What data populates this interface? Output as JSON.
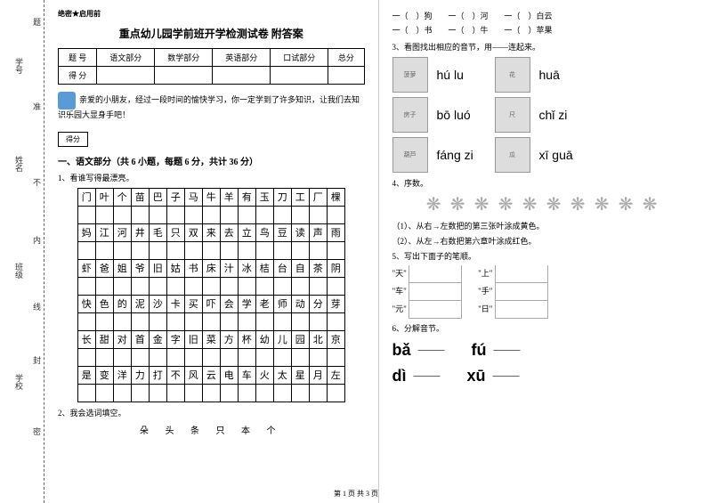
{
  "margin": {
    "labels": [
      "学号",
      "姓名",
      "班级",
      "学校"
    ],
    "marks": [
      "题",
      "准",
      "不",
      "内",
      "线",
      "封",
      "密"
    ]
  },
  "confidential": "绝密★启用前",
  "title": "重点幼儿园学前班开学检测试卷 附答案",
  "scoreTable": {
    "headers": [
      "题 号",
      "语文部分",
      "数学部分",
      "英语部分",
      "口试部分",
      "总分"
    ],
    "row2": "得 分"
  },
  "intro": "亲爱的小朋友，经过一段时间的愉快学习，你一定学到了许多知识，让我们去知识乐园大显身手吧！",
  "scoreBox": "得分",
  "section1": "一、语文部分（共 6 小题，每题 6 分，共计 36 分）",
  "q1": "1、看谁写得最漂亮。",
  "charGrid": [
    [
      "门",
      "叶",
      "个",
      "苗",
      "巴",
      "子",
      "马",
      "牛",
      "羊",
      "有",
      "玉",
      "刀",
      "工",
      "厂",
      "棵"
    ],
    [
      "妈",
      "江",
      "河",
      "井",
      "毛",
      "只",
      "双",
      "来",
      "去",
      "立",
      "鸟",
      "豆",
      "读",
      "声",
      "雨"
    ],
    [
      "虾",
      "爸",
      "姐",
      "爷",
      "旧",
      "姑",
      "书",
      "床",
      "汁",
      "冰",
      "桔",
      "台",
      "自",
      "茶",
      "阴"
    ],
    [
      "快",
      "色",
      "的",
      "泥",
      "沙",
      "卡",
      "买",
      "吓",
      "会",
      "学",
      "老",
      "师",
      "动",
      "分",
      "芽"
    ],
    [
      "长",
      "甜",
      "对",
      "首",
      "金",
      "字",
      "旧",
      "菜",
      "方",
      "杯",
      "幼",
      "儿",
      "园",
      "北",
      "京"
    ],
    [
      "是",
      "变",
      "洋",
      "力",
      "打",
      "不",
      "风",
      "云",
      "电",
      "车",
      "火",
      "太",
      "星",
      "月",
      "左"
    ]
  ],
  "q2": "2、我会选词填空。",
  "wordBank": "朵 头 条 只 本 个",
  "rightCol": {
    "fill1": "一（　）狗　　一（　）河　　一（　）白云",
    "fill2": "一（　）书　　一（　）牛　　一（　）苹果",
    "q3": "3、看图找出相应的音节，用——连起来。",
    "pinyinItems": [
      {
        "img1": "菠萝",
        "pinyin1": "hú lu",
        "img2": "花",
        "pinyin2": "huā"
      },
      {
        "img1": "房子",
        "pinyin1": "bō luó",
        "img2": "尺",
        "pinyin2": "chǐ zi"
      },
      {
        "img1": "葫芦",
        "pinyin1": "fáng zi",
        "img2": "瓜",
        "pinyin2": "xī guā"
      }
    ],
    "q4": "4、序数。",
    "q4a": "（1）、从右→左数把的第三张叶涂成黄色。",
    "q4b": "（2）、从左→右数把第六章叶涂成红色。",
    "q5": "5、写出下面子的笔顺。",
    "strokes": [
      "\"天\"",
      "\"上\"",
      "\"车\"",
      "\"手\"",
      "\"元\"",
      "\"日\""
    ],
    "q6": "6、分解音节。",
    "pinyinSplit": [
      [
        "bǎ",
        "fú"
      ],
      [
        "dì",
        "xū"
      ]
    ]
  },
  "footer": "第 1 页 共 3 页"
}
